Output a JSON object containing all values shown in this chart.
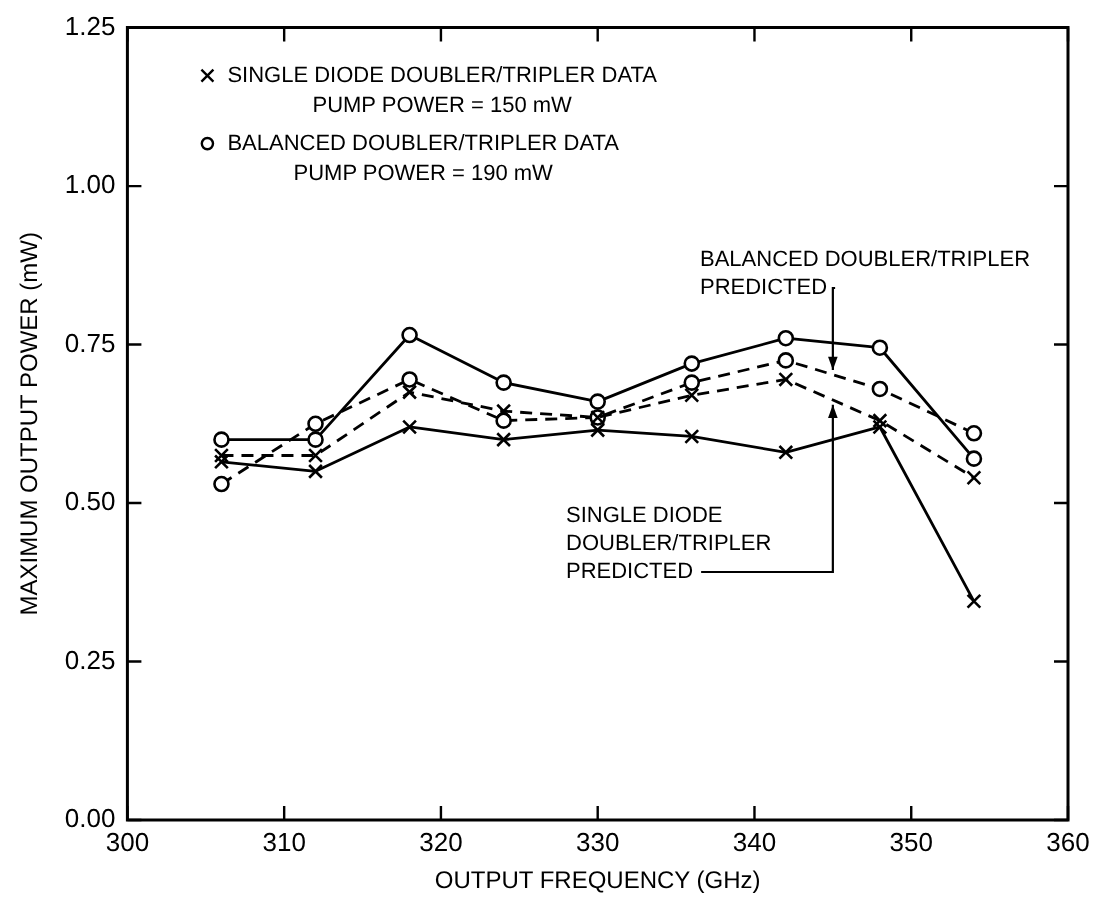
{
  "chart_data": {
    "type": "line",
    "xlabel": "OUTPUT FREQUENCY (GHz)",
    "ylabel": "MAXIMUM OUTPUT POWER (mW)",
    "x": [
      306,
      312,
      318,
      324,
      330,
      336,
      342,
      348,
      354
    ],
    "xlim": [
      300,
      360
    ],
    "xticks": [
      300,
      310,
      320,
      330,
      340,
      350,
      360
    ],
    "ylim": [
      0,
      1.25
    ],
    "yticks": [
      {
        "value": 0,
        "label": "0.00"
      },
      {
        "value": 0.25,
        "label": "0.25"
      },
      {
        "value": 0.5,
        "label": "0.50"
      },
      {
        "value": 0.75,
        "label": "0.75"
      },
      {
        "value": 1,
        "label": "1.00"
      },
      {
        "value": 1.25,
        "label": "1.25"
      }
    ],
    "grid": false,
    "legend": "top left",
    "series": [
      {
        "name": "SINGLE DIODE DOUBLER/TRIPLER DATA",
        "color": "#000000",
        "marker": "cross",
        "line_style": "solid",
        "values": [
          0.565,
          0.55,
          0.62,
          0.6,
          0.615,
          0.605,
          0.58,
          0.62,
          0.345
        ]
      },
      {
        "name": "BALANCED DOUBLER/TRIPLER DATA",
        "color": "#000000",
        "marker": "circle",
        "line_style": "solid",
        "values": [
          0.6,
          0.6,
          0.765,
          0.69,
          0.66,
          0.72,
          0.76,
          0.745,
          0.57
        ]
      },
      {
        "color": "#000000",
        "marker": "cross",
        "line_style": "dashed",
        "values": [
          0.575,
          0.575,
          0.675,
          0.645,
          0.635,
          0.67,
          0.695,
          0.63,
          0.54
        ]
      },
      {
        "color": "#000000",
        "marker": "circle",
        "line_style": "dashed",
        "values": [
          0.53,
          0.625,
          0.695,
          0.63,
          0.635,
          0.69,
          0.725,
          0.68,
          0.61
        ]
      }
    ],
    "annotations": [
      "PUMP POWER = 150 mW",
      "PUMP POWER = 190 mW",
      {
        "text": "BALANCED DOUBLER/TRIPLER PREDICTED",
        "x": 345,
        "y": 0.71
      },
      {
        "text": "SINGLE DIODE DOUBLER/TRIPLER PREDICTED",
        "x": 345,
        "y": 0.655
      }
    ]
  }
}
